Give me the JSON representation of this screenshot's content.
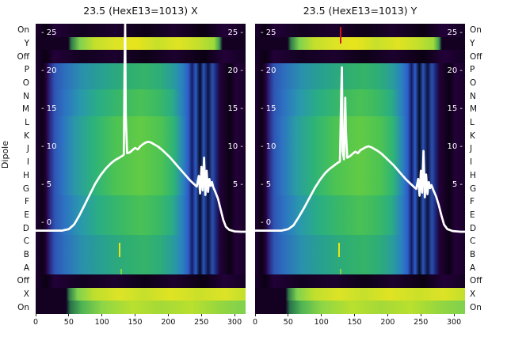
{
  "figure": {
    "titles": [
      "23.5 (HexE13=1013) X",
      "23.5 (HexE13=1013) Y"
    ],
    "ylabel": "Dipole",
    "row_labels": [
      "On",
      "Y",
      "Off",
      "P",
      "O",
      "N",
      "M",
      "L",
      "K",
      "J",
      "I",
      "H",
      "G",
      "F",
      "E",
      "D",
      "C",
      "B",
      "A",
      "Off",
      "X",
      "On"
    ],
    "x_ticks": [
      "0",
      "50",
      "100",
      "150",
      "200",
      "250",
      "300"
    ],
    "inner_ticks": [
      {
        "value": 25,
        "left": "- 25",
        "right": "25 -"
      },
      {
        "value": 20,
        "left": "- 20",
        "right": "20 -"
      },
      {
        "value": 15,
        "left": "- 15",
        "right": "15 -"
      },
      {
        "value": 10,
        "left": "- 10",
        "right": "10 -"
      },
      {
        "value": 5,
        "left": "- 5",
        "right": "5 -"
      },
      {
        "value": 0,
        "left": "- 0",
        "right": ""
      }
    ]
  },
  "chart_data": {
    "type": "heatmap",
    "subtype": "heatmap-with-line-overlay",
    "titles": [
      "23.5 (HexE13=1013) X",
      "23.5 (HexE13=1013) Y"
    ],
    "ylabel": "Dipole",
    "y_categories": [
      "On",
      "Y",
      "Off",
      "P",
      "O",
      "N",
      "M",
      "L",
      "K",
      "J",
      "I",
      "H",
      "G",
      "F",
      "E",
      "D",
      "C",
      "B",
      "A",
      "Off",
      "X",
      "On"
    ],
    "x_ticks": [
      0,
      50,
      100,
      150,
      200,
      250,
      300
    ],
    "x_range": [
      0,
      316
    ],
    "inner_y_ticks": [
      0,
      5,
      10,
      15,
      20,
      25
    ],
    "colormap": "viridis-like (dark purple low, blue/teal mid, green/yellow high)",
    "row_types": [
      "dark",
      "bright",
      "dark",
      "c1",
      "c1",
      "c2",
      "c2",
      "c3",
      "c3",
      "c3",
      "c3",
      "c3",
      "c3",
      "c2",
      "c2",
      "c2",
      "c1",
      "c1",
      "c1",
      "dark",
      "brightX",
      "brightOn"
    ],
    "gradients": {
      "dark": [
        [
          0,
          "#1c012e"
        ],
        [
          0.05,
          "#0b0013"
        ],
        [
          0.09,
          "#220138"
        ],
        [
          0.22,
          "#120120"
        ],
        [
          0.38,
          "#1c012e"
        ],
        [
          0.52,
          "#0d0117"
        ],
        [
          0.66,
          "#1c012e"
        ],
        [
          0.8,
          "#0b0013"
        ],
        [
          0.9,
          "#220138"
        ],
        [
          1,
          "#140123"
        ]
      ],
      "bright": [
        [
          0,
          "#140122"
        ],
        [
          0.155,
          "#140122"
        ],
        [
          0.17,
          "#2e7a4a"
        ],
        [
          0.21,
          "#7fd14f"
        ],
        [
          0.28,
          "#c2df2c"
        ],
        [
          0.38,
          "#dde326"
        ],
        [
          0.48,
          "#e8e41c"
        ],
        [
          0.58,
          "#c6e02b"
        ],
        [
          0.68,
          "#e0e322"
        ],
        [
          0.78,
          "#c2df2c"
        ],
        [
          0.85,
          "#9ed93a"
        ],
        [
          0.875,
          "#3f9e54"
        ],
        [
          0.89,
          "#140122"
        ],
        [
          1,
          "#140122"
        ]
      ],
      "c1": [
        [
          0,
          "#230138"
        ],
        [
          0.03,
          "#0b0114"
        ],
        [
          0.05,
          "#230138"
        ],
        [
          0.065,
          "#2a2178"
        ],
        [
          0.09,
          "#2e55b4"
        ],
        [
          0.14,
          "#2d6fbe"
        ],
        [
          0.22,
          "#2a90ac"
        ],
        [
          0.32,
          "#28a18e"
        ],
        [
          0.44,
          "#2fae72"
        ],
        [
          0.52,
          "#35b369"
        ],
        [
          0.6,
          "#2dab7c"
        ],
        [
          0.66,
          "#289aa0"
        ],
        [
          0.7,
          "#2a80c0"
        ],
        [
          0.728,
          "#2e5cc6"
        ],
        [
          0.745,
          "#141d66"
        ],
        [
          0.762,
          "#2e5cc6"
        ],
        [
          0.783,
          "#060a26"
        ],
        [
          0.8,
          "#2a55b8"
        ],
        [
          0.822,
          "#0c1242"
        ],
        [
          0.842,
          "#2c4fae"
        ],
        [
          0.862,
          "#1a2372"
        ],
        [
          0.878,
          "#230138"
        ],
        [
          0.925,
          "#0b0114"
        ],
        [
          0.955,
          "#230138"
        ],
        [
          1,
          "#190128"
        ]
      ],
      "c2": [
        [
          0,
          "#230138"
        ],
        [
          0.03,
          "#0b0114"
        ],
        [
          0.05,
          "#230138"
        ],
        [
          0.065,
          "#2a2178"
        ],
        [
          0.09,
          "#2e55b4"
        ],
        [
          0.14,
          "#2d74c2"
        ],
        [
          0.21,
          "#2997ae"
        ],
        [
          0.3,
          "#2aad84"
        ],
        [
          0.42,
          "#3cba62"
        ],
        [
          0.5,
          "#4ac156"
        ],
        [
          0.58,
          "#3cba62"
        ],
        [
          0.65,
          "#2aad84"
        ],
        [
          0.7,
          "#2a80c0"
        ],
        [
          0.728,
          "#2e5cc6"
        ],
        [
          0.745,
          "#141d66"
        ],
        [
          0.762,
          "#2e5cc6"
        ],
        [
          0.783,
          "#060a26"
        ],
        [
          0.8,
          "#2a55b8"
        ],
        [
          0.822,
          "#0c1242"
        ],
        [
          0.842,
          "#2c4fae"
        ],
        [
          0.862,
          "#1a2372"
        ],
        [
          0.878,
          "#230138"
        ],
        [
          0.925,
          "#0b0114"
        ],
        [
          0.955,
          "#230138"
        ],
        [
          1,
          "#190128"
        ]
      ],
      "c3": [
        [
          0,
          "#230138"
        ],
        [
          0.03,
          "#0b0114"
        ],
        [
          0.05,
          "#230138"
        ],
        [
          0.065,
          "#2a2178"
        ],
        [
          0.09,
          "#2e55b4"
        ],
        [
          0.13,
          "#2d74c2"
        ],
        [
          0.19,
          "#2a9aa6"
        ],
        [
          0.28,
          "#2db378"
        ],
        [
          0.38,
          "#4cc353"
        ],
        [
          0.5,
          "#62cb45"
        ],
        [
          0.6,
          "#4cc353"
        ],
        [
          0.66,
          "#2db378"
        ],
        [
          0.705,
          "#2a80c0"
        ],
        [
          0.728,
          "#2e5cc6"
        ],
        [
          0.745,
          "#141d66"
        ],
        [
          0.762,
          "#2e5cc6"
        ],
        [
          0.783,
          "#060a26"
        ],
        [
          0.8,
          "#2a55b8"
        ],
        [
          0.822,
          "#0c1242"
        ],
        [
          0.842,
          "#2c4fae"
        ],
        [
          0.862,
          "#1a2372"
        ],
        [
          0.878,
          "#230138"
        ],
        [
          0.925,
          "#0b0114"
        ],
        [
          0.955,
          "#230138"
        ],
        [
          1,
          "#190128"
        ]
      ],
      "brightX": [
        [
          0,
          "#140122"
        ],
        [
          0.145,
          "#140122"
        ],
        [
          0.16,
          "#2e7a4a"
        ],
        [
          0.2,
          "#7fd14f"
        ],
        [
          0.28,
          "#bfdf2d"
        ],
        [
          0.4,
          "#dde326"
        ],
        [
          0.52,
          "#c6e02b"
        ],
        [
          0.64,
          "#e0e322"
        ],
        [
          0.78,
          "#cbe029"
        ],
        [
          0.9,
          "#dde326"
        ],
        [
          1,
          "#c2df2c"
        ]
      ],
      "brightOn": [
        [
          0,
          "#140122"
        ],
        [
          0.145,
          "#140122"
        ],
        [
          0.165,
          "#27724a"
        ],
        [
          0.22,
          "#4fb455"
        ],
        [
          0.32,
          "#8ed645"
        ],
        [
          0.46,
          "#b9e02e"
        ],
        [
          0.6,
          "#a4d938"
        ],
        [
          0.74,
          "#b9e02e"
        ],
        [
          0.88,
          "#94d63f"
        ],
        [
          1,
          "#7fd14f"
        ]
      ]
    },
    "panels": [
      {
        "title": "23.5 (HexE13=1013) X",
        "line": {
          "name": "X profile",
          "color": "#ffffff",
          "points": [
            [
              0,
              -1.0
            ],
            [
              40,
              -1.0
            ],
            [
              50,
              -0.8
            ],
            [
              58,
              -0.2
            ],
            [
              66,
              1.0
            ],
            [
              74,
              2.4
            ],
            [
              82,
              3.8
            ],
            [
              90,
              5.2
            ],
            [
              98,
              6.3
            ],
            [
              106,
              7.2
            ],
            [
              114,
              7.9
            ],
            [
              120,
              8.3
            ],
            [
              126,
              8.6
            ],
            [
              130,
              8.8
            ],
            [
              133,
              9.0
            ],
            [
              134,
              20
            ],
            [
              135,
              26.5
            ],
            [
              136,
              14
            ],
            [
              138,
              9.2
            ],
            [
              142,
              9.3
            ],
            [
              146,
              9.6
            ],
            [
              150,
              9.9
            ],
            [
              154,
              9.7
            ],
            [
              158,
              10.1
            ],
            [
              162,
              10.4
            ],
            [
              166,
              10.6
            ],
            [
              170,
              10.7
            ],
            [
              174,
              10.6
            ],
            [
              178,
              10.4
            ],
            [
              184,
              10.1
            ],
            [
              190,
              9.7
            ],
            [
              196,
              9.2
            ],
            [
              202,
              8.7
            ],
            [
              208,
              8.1
            ],
            [
              214,
              7.5
            ],
            [
              220,
              6.9
            ],
            [
              226,
              6.3
            ],
            [
              232,
              5.7
            ],
            [
              238,
              5.2
            ],
            [
              243,
              4.8
            ],
            [
              246,
              6.2
            ],
            [
              248,
              3.9
            ],
            [
              250,
              7.4
            ],
            [
              252,
              4.3
            ],
            [
              254,
              8.6
            ],
            [
              256,
              3.7
            ],
            [
              258,
              6.9
            ],
            [
              260,
              4.1
            ],
            [
              262,
              5.8
            ],
            [
              264,
              4.9
            ],
            [
              266,
              5.4
            ],
            [
              268,
              4.7
            ],
            [
              271,
              4.1
            ],
            [
              275,
              3.2
            ],
            [
              279,
              1.8
            ],
            [
              283,
              0.4
            ],
            [
              287,
              -0.5
            ],
            [
              292,
              -0.9
            ],
            [
              300,
              -1.1
            ],
            [
              310,
              -1.15
            ],
            [
              316,
              -1.15
            ]
          ]
        },
        "extras": [
          {
            "name": "yellow-marker",
            "x": 0.4,
            "y0": 0.755,
            "y1": 0.805,
            "color": "#e8e419"
          },
          {
            "name": "green-marker",
            "x": 0.407,
            "y0": 0.845,
            "y1": 0.865,
            "color": "#7fd14f"
          }
        ]
      },
      {
        "title": "23.5 (HexE13=1013) Y",
        "line": {
          "name": "Y profile",
          "color": "#ffffff",
          "points": [
            [
              0,
              -1.0
            ],
            [
              40,
              -1.0
            ],
            [
              50,
              -0.8
            ],
            [
              58,
              -0.3
            ],
            [
              66,
              0.8
            ],
            [
              74,
              2.0
            ],
            [
              82,
              3.3
            ],
            [
              90,
              4.6
            ],
            [
              98,
              5.7
            ],
            [
              106,
              6.6
            ],
            [
              112,
              7.1
            ],
            [
              118,
              7.5
            ],
            [
              124,
              7.9
            ],
            [
              128,
              8.1
            ],
            [
              130,
              17.5
            ],
            [
              131,
              20.5
            ],
            [
              132,
              9.5
            ],
            [
              134,
              8.4
            ],
            [
              136,
              16.5
            ],
            [
              137,
              12
            ],
            [
              139,
              8.6
            ],
            [
              143,
              8.8
            ],
            [
              147,
              9.1
            ],
            [
              151,
              9.4
            ],
            [
              155,
              9.2
            ],
            [
              159,
              9.6
            ],
            [
              163,
              9.8
            ],
            [
              167,
              10.0
            ],
            [
              171,
              10.1
            ],
            [
              175,
              10.0
            ],
            [
              179,
              9.8
            ],
            [
              185,
              9.5
            ],
            [
              191,
              9.1
            ],
            [
              197,
              8.6
            ],
            [
              203,
              8.1
            ],
            [
              209,
              7.6
            ],
            [
              215,
              7.0
            ],
            [
              221,
              6.4
            ],
            [
              227,
              5.8
            ],
            [
              233,
              5.3
            ],
            [
              239,
              4.8
            ],
            [
              243,
              4.5
            ],
            [
              246,
              5.8
            ],
            [
              248,
              3.6
            ],
            [
              250,
              6.9
            ],
            [
              252,
              4.0
            ],
            [
              254,
              9.5
            ],
            [
              256,
              3.4
            ],
            [
              258,
              6.4
            ],
            [
              260,
              3.8
            ],
            [
              262,
              5.4
            ],
            [
              264,
              4.6
            ],
            [
              266,
              5.0
            ],
            [
              269,
              4.3
            ],
            [
              273,
              3.5
            ],
            [
              277,
              2.4
            ],
            [
              281,
              1.0
            ],
            [
              285,
              -0.2
            ],
            [
              290,
              -0.8
            ],
            [
              298,
              -1.05
            ],
            [
              310,
              -1.15
            ],
            [
              316,
              -1.15
            ]
          ]
        },
        "extras": [
          {
            "name": "red-marker",
            "x": 0.407,
            "y0": 0.01,
            "y1": 0.068,
            "color": "#cf1717"
          },
          {
            "name": "yellow-marker",
            "x": 0.4,
            "y0": 0.755,
            "y1": 0.805,
            "color": "#e8e419"
          },
          {
            "name": "green-marker",
            "x": 0.407,
            "y0": 0.845,
            "y1": 0.865,
            "color": "#7fd14f"
          }
        ]
      }
    ]
  }
}
